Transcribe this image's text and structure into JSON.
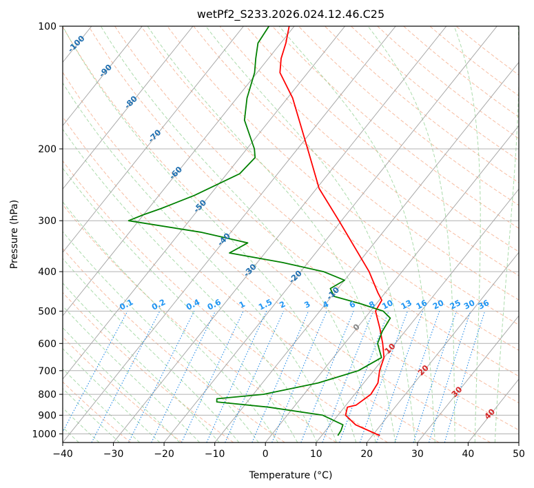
{
  "chart_data": {
    "type": "line",
    "subtype": "skew-T log-P diagram",
    "title": "wetPf2_S233.2026.024.12.46.C25",
    "xlabel": "Temperature (°C)",
    "ylabel": "Pressure (hPa)",
    "xlim": [
      -40,
      50
    ],
    "ylim": [
      1050,
      100
    ],
    "y_scale": "log",
    "x_ticks": [
      -40,
      -30,
      -20,
      -10,
      0,
      10,
      20,
      30,
      40,
      50
    ],
    "x_tick_labels": [
      "−40",
      "−30",
      "−20",
      "−10",
      "0",
      "10",
      "20",
      "30",
      "40",
      "50"
    ],
    "y_ticks": [
      1000,
      900,
      800,
      700,
      600,
      500,
      400,
      300,
      200,
      100
    ],
    "y_tick_labels": [
      "1000",
      "900",
      "800",
      "700",
      "600",
      "500",
      "400",
      "300",
      "200",
      "100"
    ],
    "grid": true,
    "series": [
      {
        "color": "#ff0000",
        "points": [
          {
            "p": 1010,
            "t": 21.5
          },
          {
            "p": 950,
            "t": 15.0
          },
          {
            "p": 900,
            "t": 11.5
          },
          {
            "p": 860,
            "t": 10.6
          },
          {
            "p": 850,
            "t": 12.0
          },
          {
            "p": 800,
            "t": 13.2
          },
          {
            "p": 750,
            "t": 12.8
          },
          {
            "p": 700,
            "t": 11.2
          },
          {
            "p": 650,
            "t": 10.0
          },
          {
            "p": 600,
            "t": 7.5
          },
          {
            "p": 550,
            "t": 4.5
          },
          {
            "p": 500,
            "t": 1.0
          },
          {
            "p": 470,
            "t": 0.5
          },
          {
            "p": 450,
            "t": -1.5
          },
          {
            "p": 400,
            "t": -6.5
          },
          {
            "p": 350,
            "t": -13.0
          },
          {
            "p": 300,
            "t": -20.5
          },
          {
            "p": 250,
            "t": -29.5
          },
          {
            "p": 200,
            "t": -38.0
          },
          {
            "p": 150,
            "t": -49.0
          },
          {
            "p": 130,
            "t": -55.5
          },
          {
            "p": 120,
            "t": -57.5
          },
          {
            "p": 110,
            "t": -59.0
          },
          {
            "p": 100,
            "t": -61.0
          }
        ]
      },
      {
        "color": "#008000",
        "points": [
          {
            "p": 1010,
            "t": 13.2
          },
          {
            "p": 980,
            "t": 13.0
          },
          {
            "p": 950,
            "t": 12.5
          },
          {
            "p": 900,
            "t": 7.0
          },
          {
            "p": 860,
            "t": -5.0
          },
          {
            "p": 835,
            "t": -16.0
          },
          {
            "p": 820,
            "t": -16.5
          },
          {
            "p": 800,
            "t": -8.0
          },
          {
            "p": 750,
            "t": 1.0
          },
          {
            "p": 700,
            "t": 7.0
          },
          {
            "p": 650,
            "t": 9.5
          },
          {
            "p": 600,
            "t": 6.5
          },
          {
            "p": 560,
            "t": 5.5
          },
          {
            "p": 520,
            "t": 5.0
          },
          {
            "p": 500,
            "t": 2.5
          },
          {
            "p": 480,
            "t": -3.0
          },
          {
            "p": 460,
            "t": -9.5
          },
          {
            "p": 440,
            "t": -11.5
          },
          {
            "p": 420,
            "t": -10.0
          },
          {
            "p": 400,
            "t": -15.5
          },
          {
            "p": 380,
            "t": -25.0
          },
          {
            "p": 360,
            "t": -37.0
          },
          {
            "p": 340,
            "t": -35.0
          },
          {
            "p": 320,
            "t": -46.0
          },
          {
            "p": 300,
            "t": -62.0
          },
          {
            "p": 290,
            "t": -60.0
          },
          {
            "p": 280,
            "t": -57.5
          },
          {
            "p": 260,
            "t": -53.0
          },
          {
            "p": 230,
            "t": -47.5
          },
          {
            "p": 210,
            "t": -47.0
          },
          {
            "p": 200,
            "t": -48.5
          },
          {
            "p": 170,
            "t": -55.0
          },
          {
            "p": 150,
            "t": -58.0
          },
          {
            "p": 130,
            "t": -60.5
          },
          {
            "p": 120,
            "t": -62.5
          },
          {
            "p": 110,
            "t": -64.5
          },
          {
            "p": 100,
            "t": -65.0
          }
        ]
      }
    ],
    "isotherm_labels": [
      "-100",
      "-90",
      "-80",
      "-70",
      "-60",
      "-50",
      "-40",
      "-30",
      "-20",
      "-10",
      "0",
      "10",
      "20",
      "30",
      "40"
    ],
    "mixing_ratio_labels": [
      "0.1",
      "0.2",
      "0.4",
      "0.6",
      "1",
      "1.5",
      "2",
      "3",
      "4",
      "6",
      "8",
      "10",
      "13",
      "16",
      "20",
      "25",
      "30",
      "36"
    ],
    "mixing_ratio_values": [
      0.1,
      0.2,
      0.4,
      0.6,
      1,
      1.5,
      2,
      3,
      4,
      6,
      8,
      10,
      13,
      16,
      20,
      25,
      30,
      36
    ]
  },
  "colors": {
    "isotherm_grid": "#a6a6a6",
    "isobar_grid": "#b0b0b0",
    "dry_adiabat": "#f4a582",
    "moist_adiabat": "#8fcf8f",
    "mixing_ratio": "#1e88e5",
    "isotherm_label_cold": "#1f6fb0",
    "isotherm_label_zero": "#888888",
    "isotherm_label_warm": "#d62728",
    "mixing_label": "#2196f3",
    "boundary": "#e0cdb0"
  }
}
